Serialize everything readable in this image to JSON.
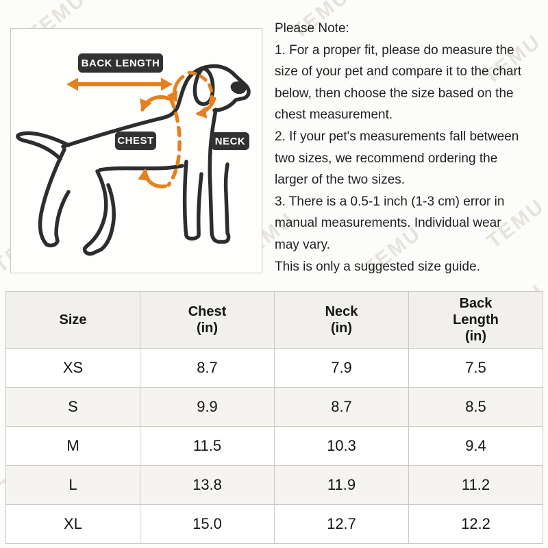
{
  "watermark": {
    "text": "TEMU"
  },
  "diagram": {
    "back_length_label": "BACK LENGTH",
    "chest_label": "CHEST",
    "neck_label": "NECK",
    "colors": {
      "arrow_orange": "#E6801E",
      "badge_dark": "#323232",
      "line_dark": "#2D2D2D"
    }
  },
  "note": {
    "lines": [
      "Please Note:",
      "1. For a proper fit, please do measure the",
      "size of your pet and compare it to the chart",
      "below, then choose the size based on the",
      "chest measurement.",
      "2. If your pet's measurements fall between",
      "two sizes, we recommend ordering the",
      "larger of the two sizes.",
      "3. There is a 0.5-1 inch (1-3 cm) error in",
      "manual measurements. Individual wear",
      "may vary.",
      "This is only a suggested size guide."
    ]
  },
  "size_chart": {
    "columns": [
      "Size",
      "Chest\n(in)",
      "Neck\n(in)",
      "Back\nLength\n(in)"
    ],
    "rows": [
      {
        "size": "XS",
        "chest": "8.7",
        "neck": "7.9",
        "back_length": "7.5"
      },
      {
        "size": "S",
        "chest": "9.9",
        "neck": "8.7",
        "back_length": "8.5"
      },
      {
        "size": "M",
        "chest": "11.5",
        "neck": "10.3",
        "back_length": "9.4"
      },
      {
        "size": "L",
        "chest": "13.8",
        "neck": "11.9",
        "back_length": "11.2"
      },
      {
        "size": "XL",
        "chest": "15.0",
        "neck": "12.7",
        "back_length": "12.2"
      }
    ]
  }
}
